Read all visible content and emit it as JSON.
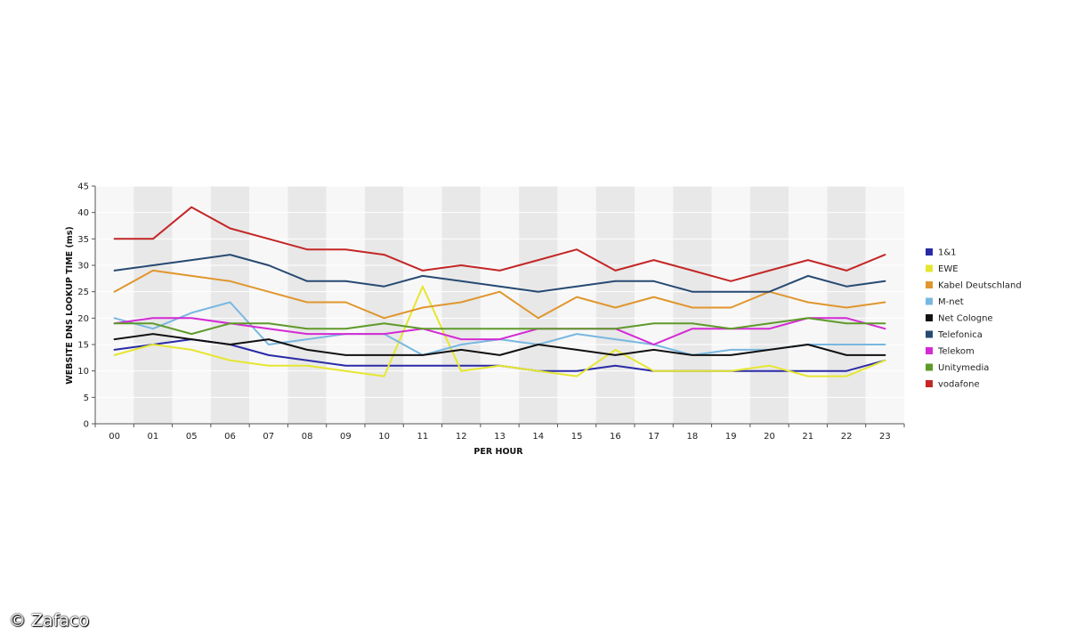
{
  "chart_data": {
    "type": "line",
    "title": "",
    "xlabel": "PER HOUR",
    "ylabel": "WEBSITE DNS LOOKUP TIME (ms)",
    "ylim": [
      0,
      45
    ],
    "yticks": [
      0,
      5,
      10,
      15,
      20,
      25,
      30,
      35,
      40,
      45
    ],
    "categories": [
      "00",
      "01",
      "05",
      "06",
      "07",
      "08",
      "09",
      "10",
      "11",
      "12",
      "13",
      "14",
      "15",
      "16",
      "17",
      "18",
      "19",
      "20",
      "21",
      "22",
      "23"
    ],
    "grid": true,
    "legend_position": "right",
    "series": [
      {
        "name": "1&1",
        "color": "#2a2aa8",
        "values": [
          14,
          15,
          16,
          15,
          13,
          12,
          11,
          11,
          11,
          11,
          11,
          10,
          10,
          11,
          10,
          10,
          10,
          10,
          10,
          10,
          12
        ]
      },
      {
        "name": "EWE",
        "color": "#e6e632",
        "values": [
          13,
          15,
          14,
          12,
          11,
          11,
          10,
          9,
          26,
          10,
          11,
          10,
          9,
          14,
          10,
          10,
          10,
          11,
          9,
          9,
          12
        ]
      },
      {
        "name": "Kabel Deutschland",
        "color": "#e0962e",
        "values": [
          25,
          29,
          28,
          27,
          25,
          23,
          23,
          20,
          22,
          23,
          25,
          20,
          24,
          22,
          24,
          22,
          22,
          25,
          23,
          22,
          23
        ]
      },
      {
        "name": "M-net",
        "color": "#78b8e0",
        "values": [
          20,
          18,
          21,
          23,
          15,
          16,
          17,
          17,
          13,
          15,
          16,
          15,
          17,
          16,
          15,
          13,
          14,
          14,
          15,
          15,
          15
        ]
      },
      {
        "name": "Net Cologne",
        "color": "#111111",
        "values": [
          16,
          17,
          16,
          15,
          16,
          14,
          13,
          13,
          13,
          14,
          13,
          15,
          14,
          13,
          14,
          13,
          13,
          14,
          15,
          13,
          13
        ]
      },
      {
        "name": "Telefonica",
        "color": "#274a72",
        "values": [
          29,
          30,
          31,
          32,
          30,
          27,
          27,
          26,
          28,
          27,
          26,
          25,
          26,
          27,
          27,
          25,
          25,
          25,
          28,
          26,
          27
        ]
      },
      {
        "name": "Telekom",
        "color": "#d42ad4",
        "values": [
          19,
          20,
          20,
          19,
          18,
          17,
          17,
          17,
          18,
          16,
          16,
          18,
          18,
          18,
          15,
          18,
          18,
          18,
          20,
          20,
          18
        ]
      },
      {
        "name": "Unitymedia",
        "color": "#5e9a2a",
        "values": [
          19,
          19,
          17,
          19,
          19,
          18,
          18,
          19,
          18,
          18,
          18,
          18,
          18,
          18,
          19,
          19,
          18,
          19,
          20,
          19,
          19
        ]
      },
      {
        "name": "vodafone",
        "color": "#c42626",
        "values": [
          35,
          35,
          41,
          37,
          35,
          33,
          33,
          32,
          29,
          30,
          29,
          31,
          33,
          29,
          31,
          29,
          27,
          29,
          31,
          29,
          32
        ]
      }
    ]
  },
  "watermark": {
    "text": "© Zafaco"
  }
}
